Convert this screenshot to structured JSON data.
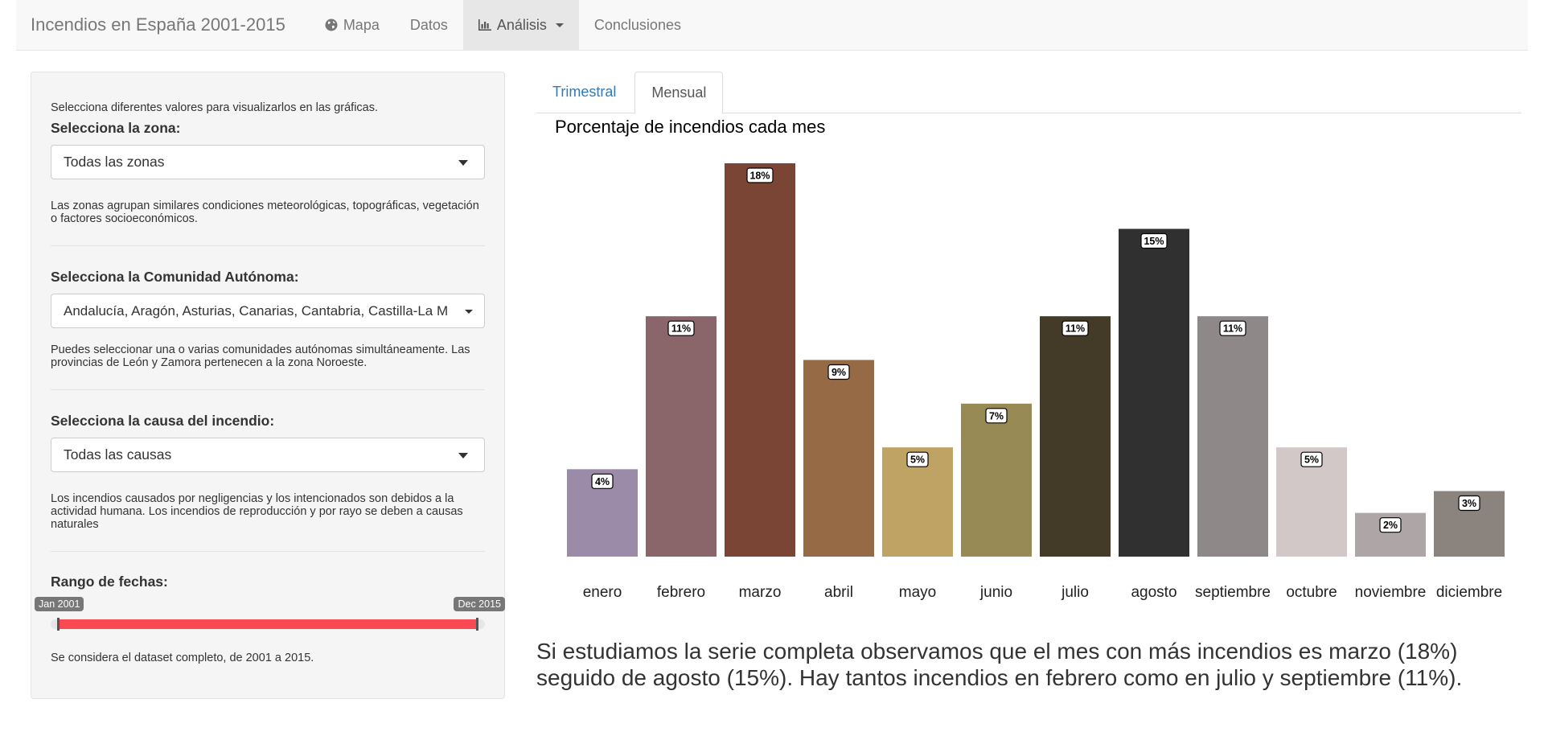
{
  "navbar": {
    "brand": "Incendios en España 2001-2015",
    "items": [
      {
        "label": "Mapa",
        "icon": "globe-icon"
      },
      {
        "label": "Datos"
      },
      {
        "label": "Análisis",
        "icon": "bar-chart-icon",
        "active": true
      },
      {
        "label": "Conclusiones"
      }
    ]
  },
  "sidebar": {
    "intro": "Selecciona diferentes valores para visualizarlos en las gráficas.",
    "zona": {
      "label": "Selecciona la zona:",
      "value": "Todas las zonas",
      "help": "Las zonas agrupan similares condiciones meteorológicas, topográficas, vegetación o factores socioeconómicos."
    },
    "comunidad": {
      "label": "Selecciona la Comunidad Autónoma:",
      "value": "Andalucía, Aragón, Asturias, Canarias, Cantabria, Castilla-La M",
      "help": "Puedes seleccionar una o varias comunidades autónomas simultáneamente. Las provincias de León y Zamora pertenecen a la zona Noroeste."
    },
    "causa": {
      "label": "Selecciona la causa del incendio:",
      "value": "Todas las causas",
      "help": "Los incendios causados por negligencias y los intencionados son debidos a la actividad humana. Los incendios de reproducción y por rayo se deben a causas naturales"
    },
    "fechas": {
      "label": "Rango de fechas:",
      "from": "Jan 2001",
      "to": "Dec 2015",
      "help": "Se considera el dataset completo, de 2001 a 2015."
    }
  },
  "tabs": [
    {
      "label": "Trimestral",
      "active": false
    },
    {
      "label": "Mensual",
      "active": true
    }
  ],
  "chart_data": {
    "type": "bar",
    "title": "Porcentaje de incendios cada mes",
    "xlabel": "",
    "ylabel": "",
    "ylim": [
      0,
      18
    ],
    "grid": false,
    "categories": [
      "enero",
      "febrero",
      "marzo",
      "abril",
      "mayo",
      "junio",
      "julio",
      "agosto",
      "septiembre",
      "octubre",
      "noviembre",
      "diciembre"
    ],
    "values": [
      4,
      11,
      18,
      9,
      5,
      7,
      11,
      15,
      11,
      5,
      2,
      3
    ],
    "labels": [
      "4%",
      "11%",
      "18%",
      "9%",
      "5%",
      "7%",
      "11%",
      "15%",
      "11%",
      "5%",
      "2%",
      "3%"
    ],
    "colors": [
      "#9b8aa8",
      "#8a656a",
      "#7b4536",
      "#966a45",
      "#bfa365",
      "#978a55",
      "#433b28",
      "#303030",
      "#8e8889",
      "#d3c8c8",
      "#aea5a6",
      "#8a837e"
    ]
  },
  "conclusion": "Si estudiamos la serie completa observamos que el mes con más incendios es marzo (18%) seguido de agosto (15%). Hay tantos incendios en febrero como en julio y septiembre (11%)."
}
